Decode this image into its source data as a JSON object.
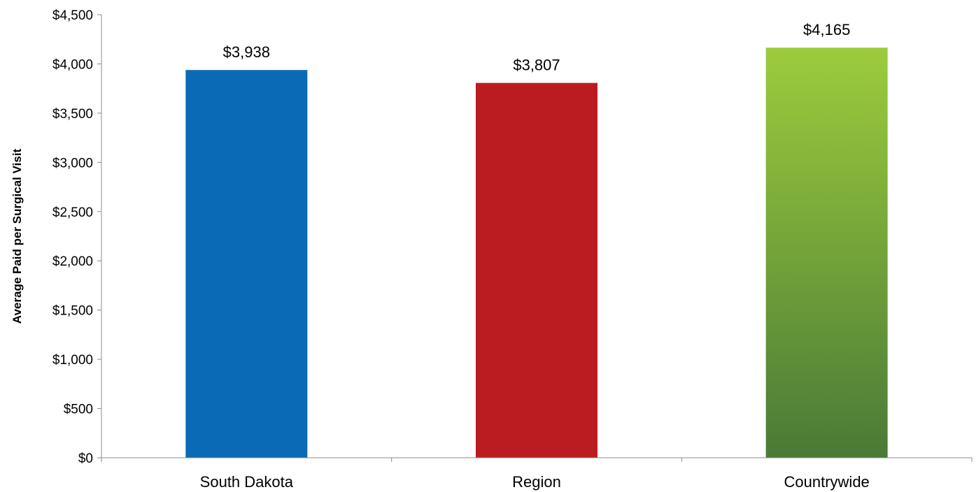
{
  "chart_data": {
    "type": "bar",
    "title": "",
    "xlabel": "",
    "ylabel": "Average Paid per Surgical Visit",
    "categories": [
      "South Dakota",
      "Region",
      "Countrywide"
    ],
    "values": [
      3938,
      3807,
      4165
    ],
    "value_labels": [
      "$3,938",
      "$3,807",
      "$4,165"
    ],
    "ylim": [
      0,
      4500
    ],
    "yticks": [
      0,
      500,
      1000,
      1500,
      2000,
      2500,
      3000,
      3500,
      4000,
      4500
    ],
    "ytick_labels": [
      "$0",
      "$500",
      "$1,000",
      "$1,500",
      "$2,000",
      "$2,500",
      "$3,000",
      "$3,500",
      "$4,000",
      "$4,500"
    ],
    "grid": false,
    "legend": "none",
    "bar_colors": [
      {
        "top": "#0b6ab5",
        "bottom": "#0b6ab5"
      },
      {
        "top": "#bb1c22",
        "bottom": "#bb1c22"
      },
      {
        "top": "#9ccc3c",
        "bottom": "#4a7a36"
      }
    ]
  }
}
